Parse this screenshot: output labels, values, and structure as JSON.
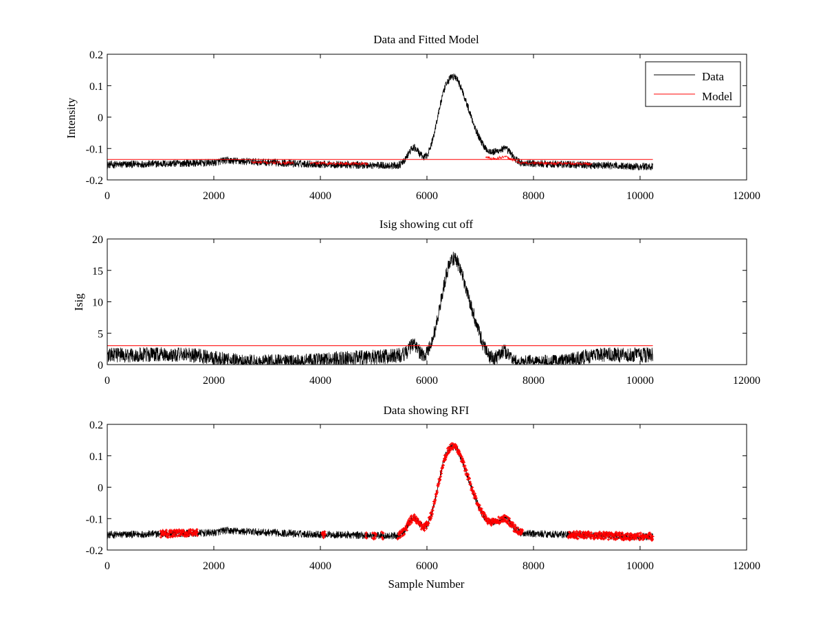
{
  "chart_data": [
    {
      "type": "line",
      "title": "Data and Fitted Model",
      "xlabel": "",
      "ylabel": "Intensity",
      "xlim": [
        0,
        12000
      ],
      "ylim": [
        -0.2,
        0.2
      ],
      "xticks": [
        "0",
        "2000",
        "4000",
        "6000",
        "8000",
        "10000",
        "12000"
      ],
      "yticks": [
        "-0.2",
        "-0.1",
        "0",
        "0.1",
        "0.2"
      ],
      "grid": false,
      "legend_position": "top-right",
      "series": [
        {
          "name": "Data",
          "color": "#000000",
          "x_range": [
            0,
            10240
          ],
          "baseline_points": [
            [
              0,
              -0.152
            ],
            [
              2000,
              -0.145
            ],
            [
              2200,
              -0.138
            ],
            [
              3500,
              -0.148
            ],
            [
              4500,
              -0.152
            ],
            [
              5500,
              -0.155
            ],
            [
              8000,
              -0.148
            ],
            [
              9500,
              -0.155
            ],
            [
              10240,
              -0.158
            ]
          ],
          "noise_amplitude": 0.012,
          "features": [
            {
              "center": 5750,
              "height": 0.055,
              "width": 110
            },
            {
              "center": 6480,
              "height": 0.26,
              "width": 220
            },
            {
              "center": 6850,
              "height": 0.08,
              "width": 200
            },
            {
              "center": 6250,
              "height": 0.04,
              "width": 120
            },
            {
              "center": 7500,
              "height": 0.035,
              "width": 120
            },
            {
              "center": 7300,
              "height": 0.025,
              "width": 150
            }
          ]
        },
        {
          "name": "Model",
          "color": "#ff0000",
          "line_points": [
            [
              0,
              -0.135
            ],
            [
              10240,
              -0.135
            ]
          ],
          "marked_ranges": [
            [
              2700,
              3500
            ],
            [
              3800,
              4900
            ],
            [
              7100,
              9100
            ]
          ]
        }
      ]
    },
    {
      "type": "line",
      "title": "Isig showing cut off",
      "xlabel": "",
      "ylabel": "Isig",
      "xlim": [
        0,
        12000
      ],
      "ylim": [
        0,
        20
      ],
      "xticks": [
        "0",
        "2000",
        "4000",
        "6000",
        "8000",
        "10000",
        "12000"
      ],
      "yticks": [
        "0",
        "5",
        "10",
        "15",
        "20"
      ],
      "grid": false,
      "series": [
        {
          "color": "#000000",
          "x_range": [
            0,
            10240
          ],
          "baseline_points": [
            [
              0,
              1.5
            ],
            [
              1500,
              1.6
            ],
            [
              2500,
              0.5
            ],
            [
              3500,
              0.4
            ],
            [
              4500,
              1.0
            ],
            [
              5500,
              1.4
            ],
            [
              6000,
              0.2
            ],
            [
              7000,
              0.3
            ],
            [
              8500,
              0.4
            ],
            [
              9200,
              1.6
            ],
            [
              10240,
              1.5
            ]
          ],
          "noise_amplitude": 1.2,
          "features": [
            {
              "center": 5750,
              "height": 2.2,
              "width": 100
            },
            {
              "center": 6480,
              "height": 16.0,
              "width": 220
            },
            {
              "center": 6850,
              "height": 4.5,
              "width": 180
            },
            {
              "center": 7450,
              "height": 1.8,
              "width": 100
            }
          ]
        },
        {
          "color": "#ff0000",
          "cutoff": 3.0,
          "line_points": [
            [
              0,
              3.0
            ],
            [
              10240,
              3.0
            ]
          ]
        }
      ]
    },
    {
      "type": "line",
      "title": "Data showing RFI",
      "xlabel": "Sample Number",
      "ylabel": "",
      "xlim": [
        0,
        12000
      ],
      "ylim": [
        -0.2,
        0.2
      ],
      "xticks": [
        "0",
        "2000",
        "4000",
        "6000",
        "8000",
        "10000",
        "12000"
      ],
      "yticks": [
        "-0.2",
        "-0.1",
        "0",
        "0.1",
        "0.2"
      ],
      "grid": false,
      "series": [
        {
          "color": "#000000",
          "x_range": [
            0,
            10240
          ],
          "baseline_points": [
            [
              0,
              -0.152
            ],
            [
              2000,
              -0.145
            ],
            [
              2200,
              -0.138
            ],
            [
              3500,
              -0.148
            ],
            [
              4500,
              -0.152
            ],
            [
              5500,
              -0.155
            ],
            [
              8000,
              -0.148
            ],
            [
              9500,
              -0.155
            ],
            [
              10240,
              -0.158
            ]
          ],
          "noise_amplitude": 0.012,
          "features": [
            {
              "center": 5750,
              "height": 0.055,
              "width": 110
            },
            {
              "center": 6480,
              "height": 0.26,
              "width": 220
            },
            {
              "center": 6850,
              "height": 0.08,
              "width": 200
            },
            {
              "center": 6250,
              "height": 0.04,
              "width": 120
            },
            {
              "center": 7500,
              "height": 0.035,
              "width": 120
            },
            {
              "center": 7300,
              "height": 0.025,
              "width": 150
            }
          ]
        },
        {
          "color": "#ff0000",
          "marker": "+",
          "flagged_ranges": [
            [
              1000,
              1700
            ],
            [
              4030,
              4090
            ],
            [
              4850,
              4870
            ],
            [
              4980,
              5050
            ],
            [
              5150,
              5180
            ],
            [
              5450,
              7800
            ],
            [
              8650,
              10240
            ]
          ]
        }
      ]
    }
  ]
}
